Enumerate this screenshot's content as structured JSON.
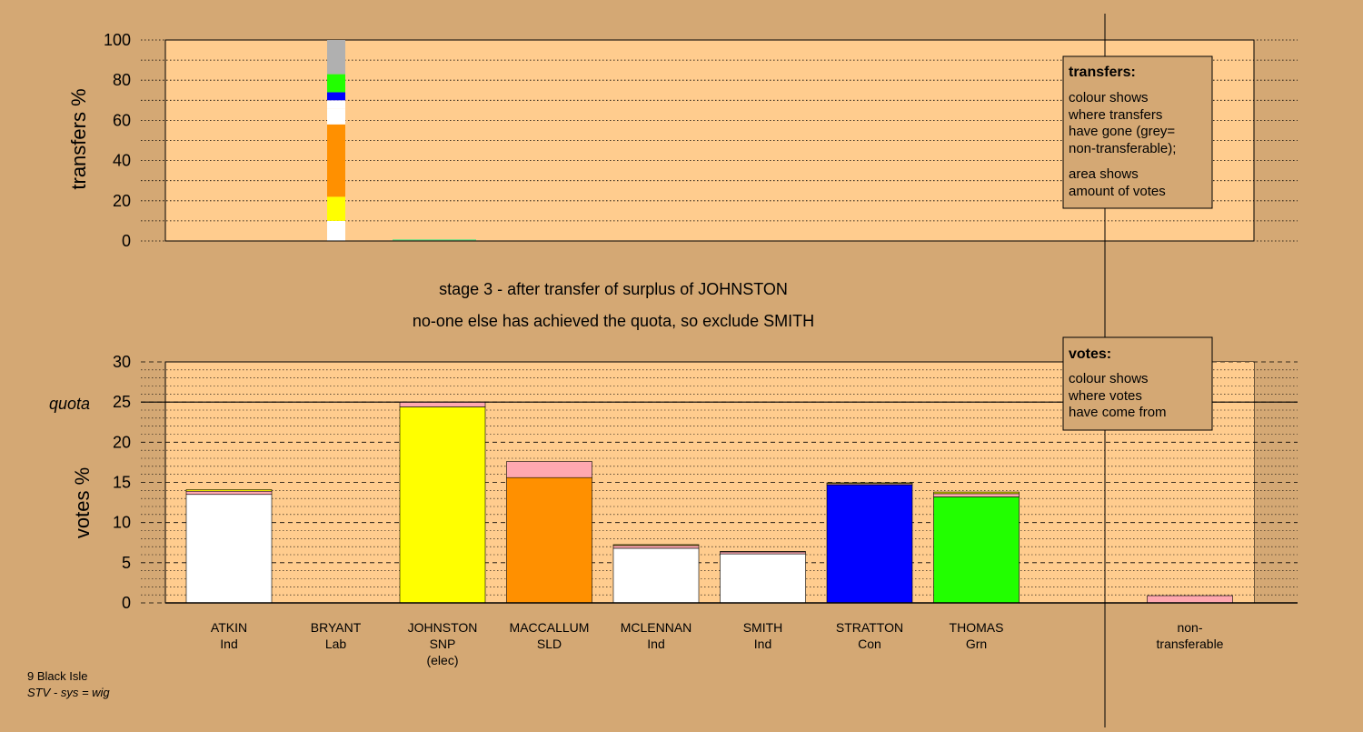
{
  "colors": {
    "background": "#D4A874",
    "plot": "#FFCC8E",
    "white": "#FFFFFF",
    "yellow": "#FFFF00",
    "orange": "#FF9000",
    "blue": "#0000FF",
    "green": "#22FF00",
    "grey": "#B0B0B0",
    "pink": "#FFA8B0"
  },
  "messages": {
    "line1": "stage 3 - after transfer of surplus of JOHNSTON",
    "line2": "no-one else has achieved the quota, so exclude SMITH"
  },
  "legend_transfers": {
    "title": "transfers:",
    "lines": [
      "colour shows",
      "where transfers",
      "have gone (grey=",
      "non-transferable);"
    ],
    "lines2": [
      "area shows",
      "amount of votes"
    ]
  },
  "legend_votes": {
    "title": "votes:",
    "lines": [
      "colour shows",
      "where votes",
      "have come from"
    ]
  },
  "footer": {
    "ward": "9 Black Isle",
    "system": "STV - sys = wig"
  },
  "chart_data": [
    {
      "type": "bar",
      "stacked": true,
      "ylabel": "transfers %",
      "ylim": [
        0,
        100
      ],
      "yticks": [
        0,
        20,
        40,
        60,
        80,
        100
      ],
      "grid": true,
      "legend_placement": "top-right",
      "transfer_from": "JOHNSTON",
      "segments": [
        {
          "to": "ATKIN",
          "color": "white",
          "value": 10
        },
        {
          "to": "JOHNSTON",
          "color": "yellow",
          "value": 12
        },
        {
          "to": "MACCALLUM",
          "color": "orange",
          "value": 36
        },
        {
          "to": "MCLENNAN",
          "color": "white",
          "value": 8
        },
        {
          "to": "SMITH",
          "color": "white",
          "value": 4
        },
        {
          "to": "STRATTON",
          "color": "blue",
          "value": 4
        },
        {
          "to": "THOMAS",
          "color": "green",
          "value": 9
        },
        {
          "to": "non-transferable",
          "color": "grey",
          "value": 17
        }
      ]
    },
    {
      "type": "bar",
      "stacked": true,
      "ylabel": "votes %",
      "ylim": [
        0,
        30
      ],
      "yticks": [
        0,
        5,
        10,
        15,
        20,
        25,
        30
      ],
      "quota": 25,
      "quota_label": "quota",
      "grid": true,
      "legend_placement": "top-right",
      "categories": [
        {
          "name": "ATKIN",
          "party": "Ind",
          "extra": ""
        },
        {
          "name": "BRYANT",
          "party": "Lab",
          "extra": ""
        },
        {
          "name": "JOHNSTON",
          "party": "SNP",
          "extra": "(elec)"
        },
        {
          "name": "MACCALLUM",
          "party": "SLD",
          "extra": ""
        },
        {
          "name": "MCLENNAN",
          "party": "Ind",
          "extra": ""
        },
        {
          "name": "SMITH",
          "party": "Ind",
          "extra": ""
        },
        {
          "name": "STRATTON",
          "party": "Con",
          "extra": ""
        },
        {
          "name": "THOMAS",
          "party": "Grn",
          "extra": ""
        },
        {
          "name": "",
          "party": "",
          "extra": ""
        },
        {
          "name": "non-",
          "party": "transferable",
          "extra": ""
        }
      ],
      "bars": [
        {
          "segments": [
            {
              "color": "white",
              "value": 13.5
            },
            {
              "color": "pink",
              "value": 0.4
            },
            {
              "color": "yellow",
              "value": 0.2
            }
          ]
        },
        {
          "segments": [
            {
              "color": "white",
              "value": 0.0
            }
          ]
        },
        {
          "segments": [
            {
              "color": "yellow",
              "value": 24.4
            },
            {
              "color": "pink",
              "value": 0.6
            }
          ]
        },
        {
          "segments": [
            {
              "color": "orange",
              "value": 15.6
            },
            {
              "color": "pink",
              "value": 2.0
            }
          ]
        },
        {
          "segments": [
            {
              "color": "white",
              "value": 6.8
            },
            {
              "color": "pink",
              "value": 0.35
            },
            {
              "color": "yellow",
              "value": 0.1
            }
          ]
        },
        {
          "segments": [
            {
              "color": "white",
              "value": 6.1
            },
            {
              "color": "pink",
              "value": 0.25
            },
            {
              "color": "yellow",
              "value": 0.05
            }
          ]
        },
        {
          "segments": [
            {
              "color": "blue",
              "value": 14.7
            },
            {
              "color": "pink",
              "value": 0.15
            },
            {
              "color": "yellow",
              "value": 0.1
            }
          ]
        },
        {
          "segments": [
            {
              "color": "green",
              "value": 13.2
            },
            {
              "color": "pink",
              "value": 0.4
            },
            {
              "color": "yellow",
              "value": 0.2
            }
          ]
        },
        {
          "segments": [
            {
              "color": "white",
              "value": 0.0
            }
          ]
        },
        {
          "segments": [
            {
              "color": "pink",
              "value": 0.9
            }
          ]
        }
      ]
    }
  ]
}
